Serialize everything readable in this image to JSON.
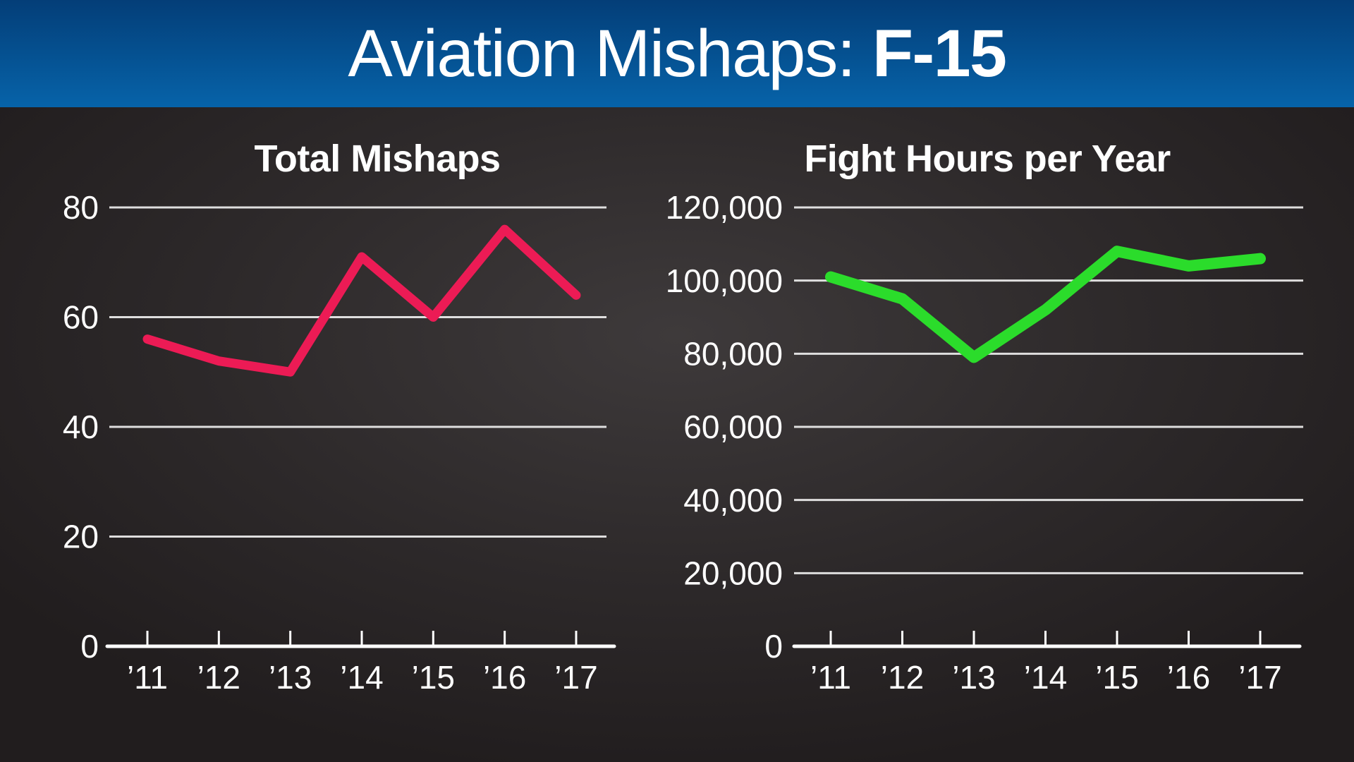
{
  "header": {
    "title_regular": "Aviation Mishaps: ",
    "title_bold": "F-15",
    "bg_top_color": "#043e78",
    "bg_bottom_color": "#0663a9"
  },
  "background_color": "#2d292a",
  "text_color": "#ffffff",
  "chart_data": [
    {
      "type": "line",
      "title": "Total Mishaps",
      "x": [
        "’11",
        "’12",
        "’13",
        "’14",
        "’15",
        "’16",
        "’17"
      ],
      "values": [
        56,
        52,
        50,
        71,
        60,
        76,
        64
      ],
      "ylim": [
        0,
        80
      ],
      "ytick_step": 20,
      "ytick_labels": [
        "0",
        "20",
        "40",
        "60",
        "80"
      ],
      "xlabel": "",
      "ylabel": "",
      "grid": "horizontal",
      "legend": "none",
      "line_color": "#ec1b55"
    },
    {
      "type": "line",
      "title": "Fight Hours per Year",
      "x": [
        "’11",
        "’12",
        "’13",
        "’14",
        "’15",
        "’16",
        "’17"
      ],
      "values": [
        101000,
        95000,
        79000,
        92000,
        108000,
        104000,
        106000
      ],
      "ylim": [
        0,
        120000
      ],
      "ytick_step": 20000,
      "ytick_labels": [
        "0",
        "20,000",
        "40,000",
        "60,000",
        "80,000",
        "100,000",
        "120,000"
      ],
      "xlabel": "",
      "ylabel": "",
      "grid": "horizontal",
      "legend": "none",
      "line_color": "#2bdc2b"
    }
  ]
}
